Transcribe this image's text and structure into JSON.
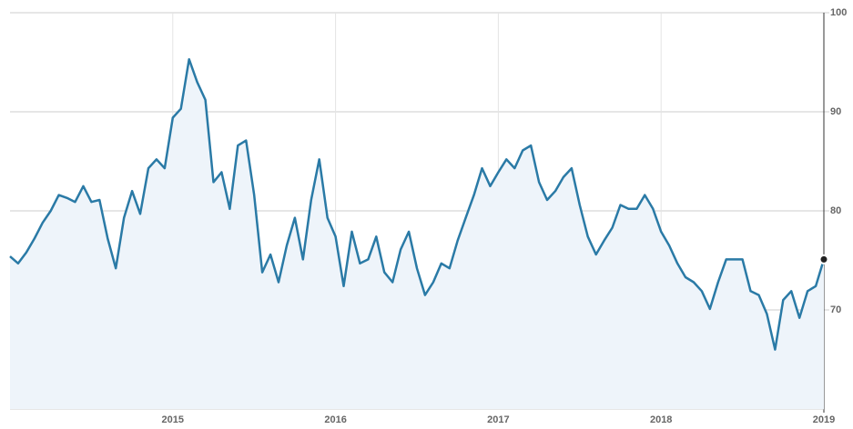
{
  "chart_data": {
    "type": "area",
    "color": "#2a7aa6",
    "fill": "#eef4fa",
    "x": [
      2014.0,
      2014.05,
      2014.1,
      2014.15,
      2014.2,
      2014.25,
      2014.3,
      2014.35,
      2014.4,
      2014.45,
      2014.5,
      2014.55,
      2014.6,
      2014.65,
      2014.7,
      2014.75,
      2014.8,
      2014.85,
      2014.9,
      2014.95,
      2015.0,
      2015.05,
      2015.1,
      2015.15,
      2015.2,
      2015.25,
      2015.3,
      2015.35,
      2015.4,
      2015.45,
      2015.5,
      2015.55,
      2015.6,
      2015.65,
      2015.7,
      2015.75,
      2015.8,
      2015.85,
      2015.9,
      2015.95,
      2016.0,
      2016.05,
      2016.1,
      2016.15,
      2016.2,
      2016.25,
      2016.3,
      2016.35,
      2016.4,
      2016.45,
      2016.5,
      2016.55,
      2016.6,
      2016.65,
      2016.7,
      2016.75,
      2016.8,
      2016.85,
      2016.9,
      2016.95,
      2017.0,
      2017.05,
      2017.1,
      2017.15,
      2017.2,
      2017.25,
      2017.3,
      2017.35,
      2017.4,
      2017.45,
      2017.5,
      2017.55,
      2017.6,
      2017.65,
      2017.7,
      2017.75,
      2017.8,
      2017.85,
      2017.9,
      2017.95,
      2018.0,
      2018.05,
      2018.1,
      2018.15,
      2018.2,
      2018.25,
      2018.3,
      2018.35,
      2018.4,
      2018.45,
      2018.5,
      2018.55,
      2018.6,
      2018.65,
      2018.7,
      2018.75,
      2018.8,
      2018.85,
      2018.9,
      2018.95,
      2019.0
    ],
    "series": [
      {
        "values": [
          75.4,
          74.7,
          75.8,
          77.2,
          78.8,
          80,
          81.6,
          81.3,
          80.9,
          82.5,
          80.9,
          81.1,
          77.2,
          74.2,
          79.3,
          82,
          79.7,
          84.3,
          85.2,
          84.3,
          89.4,
          90.3,
          95.3,
          93,
          91.2,
          82.9,
          83.9,
          80.2,
          86.6,
          87.1,
          81.6,
          73.8,
          75.6,
          72.8,
          76.5,
          79.3,
          75.1,
          81.1,
          85.2,
          79.3,
          77.4,
          72.4,
          77.9,
          74.7,
          75.1,
          77.4,
          73.8,
          72.8,
          76.1,
          77.9,
          74.2,
          71.5,
          72.8,
          74.7,
          74.2,
          77,
          79.3,
          81.6,
          84.3,
          82.5,
          83.9,
          85.2,
          84.3,
          86.1,
          86.6,
          82.9,
          81.1,
          82,
          83.4,
          84.3,
          80.6,
          77.4,
          75.6,
          77,
          78.3,
          80.6,
          80.2,
          80.2,
          81.6,
          80.2,
          77.9,
          76.5,
          74.7,
          73.3,
          72.8,
          71.9,
          70.1,
          72.8,
          75.1,
          75.1,
          75.1,
          71.9,
          71.5,
          69.6,
          66,
          71,
          71.9,
          69.2,
          71.9,
          72.4,
          75.1
        ]
      }
    ],
    "xlim": [
      2014,
      2019
    ],
    "xticks": [
      2015,
      2016,
      2017,
      2018,
      2019
    ],
    "ylim": [
      60,
      100
    ],
    "yticks": [
      70,
      80,
      90,
      100
    ],
    "grid": true
  }
}
